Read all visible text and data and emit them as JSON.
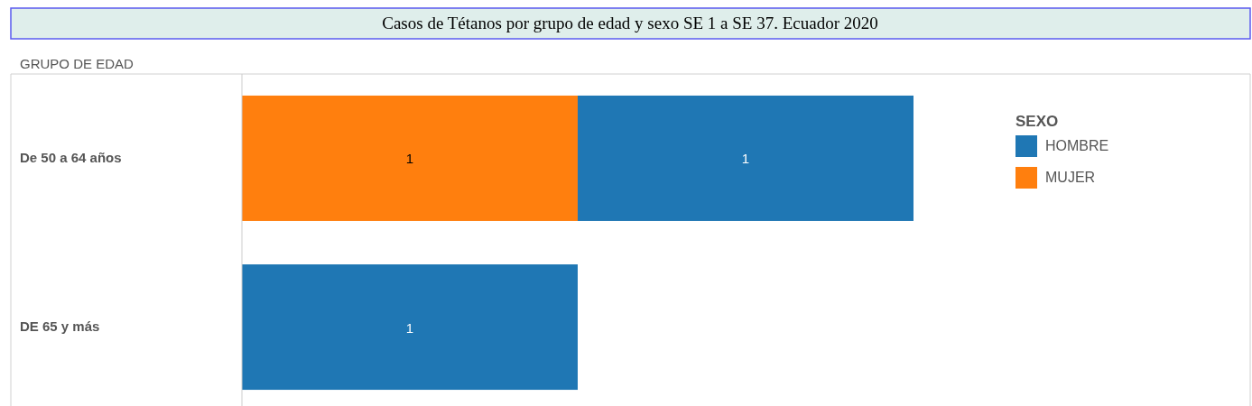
{
  "chart_data": {
    "type": "bar",
    "orientation": "horizontal",
    "stacked": true,
    "title": "Casos de Tétanos por grupo de edad y sexo SE 1 a SE 37. Ecuador 2020",
    "ylabel": "GRUPO DE EDAD",
    "legend_title": "SEXO",
    "legend": "top right",
    "data_labels": true,
    "categories": [
      "De 50 a 64 años",
      "DE 65 y más"
    ],
    "series": [
      {
        "name": "MUJER",
        "color": "#ff7f0e",
        "values": [
          1,
          null
        ]
      },
      {
        "name": "HOMBRE",
        "color": "#1f77b4",
        "values": [
          1,
          1
        ]
      }
    ]
  }
}
